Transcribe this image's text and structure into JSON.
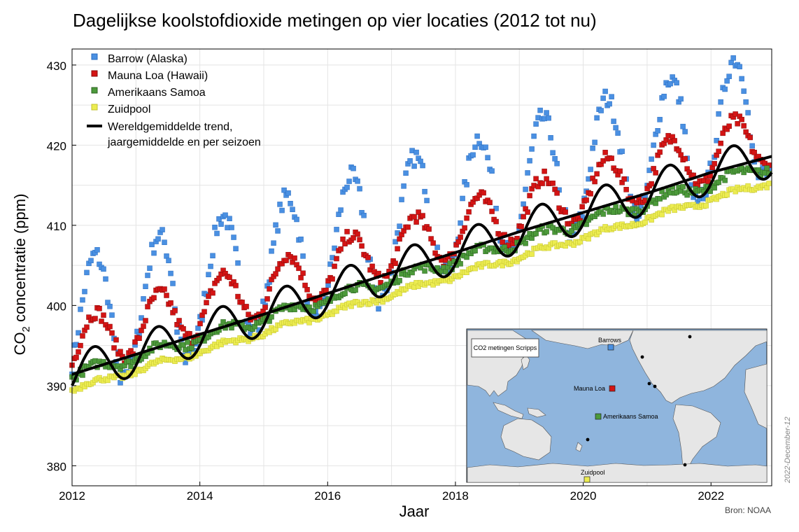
{
  "title": "Dagelijkse koolstofdioxide metingen op vier locaties (2012 tot nu)",
  "source": "Bron: NOAA",
  "datestamp": "2022-December-12",
  "chart_data": {
    "type": "scatter",
    "title": "Dagelijkse koolstofdioxide metingen op vier locaties (2012 tot nu)",
    "xlabel": "Jaar",
    "ylabel_main": "CO",
    "ylabel_sub": "2",
    "ylabel_rest": " concentratie (ppm)",
    "xlim": [
      2012,
      2022.95
    ],
    "ylim": [
      377.5,
      432
    ],
    "xticks": [
      2012,
      2014,
      2016,
      2018,
      2020,
      2022
    ],
    "xtick_labels": [
      "2012",
      "2014",
      "2016",
      "2018",
      "2020",
      "2022"
    ],
    "yticks": [
      380,
      390,
      400,
      410,
      420,
      430
    ],
    "ytick_labels": [
      "380",
      "390",
      "400",
      "410",
      "420",
      "430"
    ],
    "grid": true,
    "legend_position": "top-left",
    "series": [
      {
        "name": "Barrow (Alaska)",
        "marker": "square",
        "color": "#4a90e2",
        "model": {
          "start": 397.6,
          "growth": 2.45,
          "amplitude": 7.8,
          "noise": 1.2
        }
      },
      {
        "name": "Mauna Loa (Hawaii)",
        "marker": "square",
        "color": "#d41414",
        "model": {
          "start": 394.9,
          "growth": 2.4,
          "amplitude": 3.4,
          "noise": 0.8
        }
      },
      {
        "name": "Amerikaans Samoa",
        "marker": "square",
        "color": "#4c9a3a",
        "model": {
          "start": 391.2,
          "growth": 2.4,
          "amplitude": 0.6,
          "noise": 0.5
        }
      },
      {
        "name": "Zuidpool",
        "marker": "square",
        "color": "#ecec50",
        "model": {
          "start": 389.5,
          "growth": 2.37,
          "amplitude": 0.3,
          "noise": 0.3
        }
      }
    ],
    "trend": {
      "name_line1": "Wereldgemiddelde trend,",
      "name_line2": "jaargemiddelde en per seizoen",
      "color": "#000000",
      "x": [
        2012,
        2013,
        2014,
        2015,
        2016,
        2017,
        2018,
        2019,
        2020,
        2021,
        2022,
        2022.95
      ],
      "annual": [
        391.4,
        393.9,
        396.4,
        398.9,
        401.5,
        404.1,
        406.6,
        409.2,
        411.6,
        414.0,
        416.6,
        418.6
      ],
      "seasonal_amplitude": 2.6
    }
  },
  "inset": {
    "label": "CO2 metingen Scripps",
    "stations": [
      {
        "name": "Barrows",
        "color": "#4a90e2"
      },
      {
        "name": "Mauna Loa",
        "color": "#d41414"
      },
      {
        "name": "Amerikaans Samoa",
        "color": "#4c9a3a"
      },
      {
        "name": "Zuidpool",
        "color": "#ecec50"
      }
    ]
  }
}
